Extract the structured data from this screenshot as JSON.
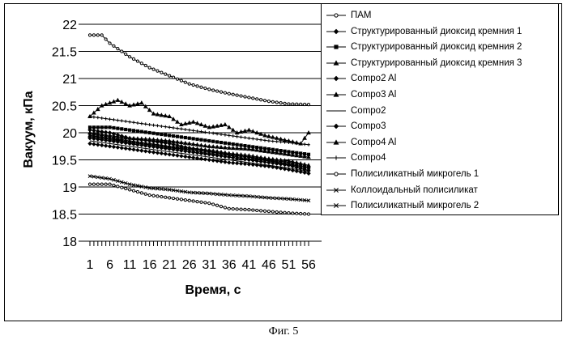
{
  "caption": "Фиг. 5",
  "chart_data": {
    "type": "line",
    "xlabel": "Время, с",
    "ylabel": "Вакуум, кПа",
    "ylim": [
      18,
      22
    ],
    "yticks": [
      "18",
      "18.5",
      "19",
      "19.5",
      "20",
      "20.5",
      "21",
      "21.5",
      "22"
    ],
    "xtick_labels": [
      "1",
      "6",
      "11",
      "16",
      "21",
      "26",
      "31",
      "36",
      "41",
      "46",
      "51",
      "56"
    ],
    "x": [
      1,
      56
    ],
    "grid": "horizontal",
    "legend_position": "right",
    "series": [
      {
        "name": "ПАМ",
        "marker": "circle-open",
        "points": [
          [
            1,
            21.8
          ],
          [
            4,
            21.8
          ],
          [
            6,
            21.65
          ],
          [
            11,
            21.4
          ],
          [
            16,
            21.2
          ],
          [
            21,
            21.05
          ],
          [
            26,
            20.9
          ],
          [
            31,
            20.8
          ],
          [
            36,
            20.72
          ],
          [
            41,
            20.65
          ],
          [
            46,
            20.58
          ],
          [
            51,
            20.53
          ],
          [
            56,
            20.52
          ]
        ]
      },
      {
        "name": "Структурированный диоксид кремния 1",
        "marker": "diamond",
        "points": [
          [
            1,
            20.05
          ],
          [
            6,
            20.0
          ],
          [
            11,
            19.9
          ],
          [
            16,
            19.85
          ],
          [
            21,
            19.8
          ],
          [
            26,
            19.72
          ],
          [
            31,
            19.65
          ],
          [
            36,
            19.6
          ],
          [
            41,
            19.55
          ],
          [
            46,
            19.48
          ],
          [
            51,
            19.42
          ],
          [
            56,
            19.35
          ]
        ]
      },
      {
        "name": "Структурированный диоксид кремния 2",
        "marker": "square",
        "points": [
          [
            1,
            20.1
          ],
          [
            6,
            20.1
          ],
          [
            11,
            20.05
          ],
          [
            16,
            20.0
          ],
          [
            21,
            19.95
          ],
          [
            26,
            19.9
          ],
          [
            31,
            19.85
          ],
          [
            36,
            19.8
          ],
          [
            41,
            19.75
          ],
          [
            46,
            19.7
          ],
          [
            51,
            19.65
          ],
          [
            56,
            19.6
          ]
        ]
      },
      {
        "name": "Структурированный диоксид кремния 3",
        "marker": "triangle",
        "points": [
          [
            1,
            20.3
          ],
          [
            4,
            20.5
          ],
          [
            8,
            20.6
          ],
          [
            11,
            20.5
          ],
          [
            14,
            20.55
          ],
          [
            17,
            20.35
          ],
          [
            21,
            20.3
          ],
          [
            24,
            20.15
          ],
          [
            27,
            20.2
          ],
          [
            31,
            20.1
          ],
          [
            35,
            20.15
          ],
          [
            38,
            20.0
          ],
          [
            41,
            20.05
          ],
          [
            45,
            19.95
          ],
          [
            48,
            19.9
          ],
          [
            51,
            19.85
          ],
          [
            54,
            19.8
          ],
          [
            56,
            20.0
          ]
        ]
      },
      {
        "name": "Compo2 Al",
        "marker": "diamond",
        "points": [
          [
            1,
            19.9
          ],
          [
            6,
            19.85
          ],
          [
            11,
            19.8
          ],
          [
            16,
            19.75
          ],
          [
            21,
            19.7
          ],
          [
            26,
            19.65
          ],
          [
            31,
            19.6
          ],
          [
            36,
            19.55
          ],
          [
            41,
            19.5
          ],
          [
            46,
            19.45
          ],
          [
            51,
            19.4
          ],
          [
            56,
            19.3
          ]
        ]
      },
      {
        "name": "Compo3 Al",
        "marker": "triangle",
        "points": [
          [
            1,
            19.95
          ],
          [
            6,
            19.9
          ],
          [
            11,
            19.85
          ],
          [
            16,
            19.8
          ],
          [
            21,
            19.75
          ],
          [
            26,
            19.72
          ],
          [
            31,
            19.68
          ],
          [
            36,
            19.62
          ],
          [
            41,
            19.58
          ],
          [
            46,
            19.52
          ],
          [
            51,
            19.48
          ],
          [
            56,
            19.4
          ]
        ]
      },
      {
        "name": "Compo2",
        "marker": "none",
        "points": [
          [
            1,
            19.85
          ],
          [
            6,
            19.8
          ],
          [
            11,
            19.75
          ],
          [
            16,
            19.7
          ],
          [
            21,
            19.65
          ],
          [
            26,
            19.6
          ],
          [
            31,
            19.55
          ],
          [
            36,
            19.5
          ],
          [
            41,
            19.45
          ],
          [
            46,
            19.4
          ],
          [
            51,
            19.35
          ],
          [
            56,
            19.28
          ]
        ]
      },
      {
        "name": "Compo3",
        "marker": "diamond",
        "points": [
          [
            1,
            19.8
          ],
          [
            6,
            19.75
          ],
          [
            11,
            19.7
          ],
          [
            16,
            19.65
          ],
          [
            21,
            19.6
          ],
          [
            26,
            19.55
          ],
          [
            31,
            19.5
          ],
          [
            36,
            19.45
          ],
          [
            41,
            19.42
          ],
          [
            46,
            19.38
          ],
          [
            51,
            19.32
          ],
          [
            56,
            19.25
          ]
        ]
      },
      {
        "name": "Compo4 Al",
        "marker": "triangle",
        "points": [
          [
            1,
            20.0
          ],
          [
            6,
            19.95
          ],
          [
            11,
            19.9
          ],
          [
            16,
            19.88
          ],
          [
            21,
            19.85
          ],
          [
            26,
            19.8
          ],
          [
            31,
            19.75
          ],
          [
            36,
            19.72
          ],
          [
            41,
            19.7
          ],
          [
            46,
            19.65
          ],
          [
            51,
            19.6
          ],
          [
            56,
            19.55
          ]
        ]
      },
      {
        "name": "Compo4",
        "marker": "plus",
        "points": [
          [
            1,
            20.3
          ],
          [
            6,
            20.25
          ],
          [
            11,
            20.2
          ],
          [
            16,
            20.15
          ],
          [
            21,
            20.1
          ],
          [
            26,
            20.05
          ],
          [
            31,
            20.0
          ],
          [
            36,
            19.95
          ],
          [
            41,
            19.9
          ],
          [
            46,
            19.85
          ],
          [
            51,
            19.82
          ],
          [
            56,
            19.78
          ]
        ]
      },
      {
        "name": "Полисиликатный микрогель 1",
        "marker": "circle-open",
        "points": [
          [
            1,
            19.05
          ],
          [
            6,
            19.05
          ],
          [
            11,
            18.95
          ],
          [
            16,
            18.85
          ],
          [
            21,
            18.8
          ],
          [
            26,
            18.75
          ],
          [
            31,
            18.7
          ],
          [
            36,
            18.6
          ],
          [
            41,
            18.58
          ],
          [
            46,
            18.55
          ],
          [
            51,
            18.52
          ],
          [
            56,
            18.5
          ]
        ]
      },
      {
        "name": "Коллоидальный полисиликат",
        "marker": "x",
        "points": [
          [
            1,
            19.95
          ],
          [
            6,
            19.9
          ],
          [
            11,
            19.82
          ],
          [
            16,
            19.78
          ],
          [
            21,
            19.72
          ],
          [
            26,
            19.68
          ],
          [
            31,
            19.62
          ],
          [
            36,
            19.58
          ],
          [
            41,
            19.52
          ],
          [
            46,
            19.48
          ],
          [
            51,
            19.42
          ],
          [
            56,
            19.35
          ]
        ]
      },
      {
        "name": "Полисиликатный микрогель 2",
        "marker": "x",
        "points": [
          [
            1,
            19.2
          ],
          [
            6,
            19.15
          ],
          [
            11,
            19.05
          ],
          [
            16,
            18.98
          ],
          [
            21,
            18.95
          ],
          [
            26,
            18.9
          ],
          [
            31,
            18.88
          ],
          [
            36,
            18.85
          ],
          [
            41,
            18.83
          ],
          [
            46,
            18.8
          ],
          [
            51,
            18.78
          ],
          [
            56,
            18.75
          ]
        ]
      }
    ]
  }
}
